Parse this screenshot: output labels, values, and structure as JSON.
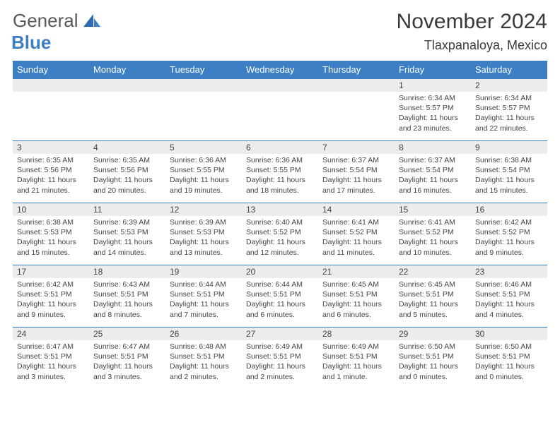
{
  "logo": {
    "word1": "General",
    "word2": "Blue"
  },
  "title": "November 2024",
  "location": "Tlaxpanaloya, Mexico",
  "colors": {
    "header_bg": "#3d7fc4",
    "header_text": "#ffffff",
    "daynum_bg": "#ececec",
    "border": "#3d7fc4",
    "logo_gray": "#5a5a5a",
    "logo_blue": "#3d7fc4"
  },
  "dayNames": [
    "Sunday",
    "Monday",
    "Tuesday",
    "Wednesday",
    "Thursday",
    "Friday",
    "Saturday"
  ],
  "weeks": [
    [
      {
        "n": "",
        "sr": "",
        "ss": "",
        "dl": ""
      },
      {
        "n": "",
        "sr": "",
        "ss": "",
        "dl": ""
      },
      {
        "n": "",
        "sr": "",
        "ss": "",
        "dl": ""
      },
      {
        "n": "",
        "sr": "",
        "ss": "",
        "dl": ""
      },
      {
        "n": "",
        "sr": "",
        "ss": "",
        "dl": ""
      },
      {
        "n": "1",
        "sr": "Sunrise: 6:34 AM",
        "ss": "Sunset: 5:57 PM",
        "dl": "Daylight: 11 hours and 23 minutes."
      },
      {
        "n": "2",
        "sr": "Sunrise: 6:34 AM",
        "ss": "Sunset: 5:57 PM",
        "dl": "Daylight: 11 hours and 22 minutes."
      }
    ],
    [
      {
        "n": "3",
        "sr": "Sunrise: 6:35 AM",
        "ss": "Sunset: 5:56 PM",
        "dl": "Daylight: 11 hours and 21 minutes."
      },
      {
        "n": "4",
        "sr": "Sunrise: 6:35 AM",
        "ss": "Sunset: 5:56 PM",
        "dl": "Daylight: 11 hours and 20 minutes."
      },
      {
        "n": "5",
        "sr": "Sunrise: 6:36 AM",
        "ss": "Sunset: 5:55 PM",
        "dl": "Daylight: 11 hours and 19 minutes."
      },
      {
        "n": "6",
        "sr": "Sunrise: 6:36 AM",
        "ss": "Sunset: 5:55 PM",
        "dl": "Daylight: 11 hours and 18 minutes."
      },
      {
        "n": "7",
        "sr": "Sunrise: 6:37 AM",
        "ss": "Sunset: 5:54 PM",
        "dl": "Daylight: 11 hours and 17 minutes."
      },
      {
        "n": "8",
        "sr": "Sunrise: 6:37 AM",
        "ss": "Sunset: 5:54 PM",
        "dl": "Daylight: 11 hours and 16 minutes."
      },
      {
        "n": "9",
        "sr": "Sunrise: 6:38 AM",
        "ss": "Sunset: 5:54 PM",
        "dl": "Daylight: 11 hours and 15 minutes."
      }
    ],
    [
      {
        "n": "10",
        "sr": "Sunrise: 6:38 AM",
        "ss": "Sunset: 5:53 PM",
        "dl": "Daylight: 11 hours and 15 minutes."
      },
      {
        "n": "11",
        "sr": "Sunrise: 6:39 AM",
        "ss": "Sunset: 5:53 PM",
        "dl": "Daylight: 11 hours and 14 minutes."
      },
      {
        "n": "12",
        "sr": "Sunrise: 6:39 AM",
        "ss": "Sunset: 5:53 PM",
        "dl": "Daylight: 11 hours and 13 minutes."
      },
      {
        "n": "13",
        "sr": "Sunrise: 6:40 AM",
        "ss": "Sunset: 5:52 PM",
        "dl": "Daylight: 11 hours and 12 minutes."
      },
      {
        "n": "14",
        "sr": "Sunrise: 6:41 AM",
        "ss": "Sunset: 5:52 PM",
        "dl": "Daylight: 11 hours and 11 minutes."
      },
      {
        "n": "15",
        "sr": "Sunrise: 6:41 AM",
        "ss": "Sunset: 5:52 PM",
        "dl": "Daylight: 11 hours and 10 minutes."
      },
      {
        "n": "16",
        "sr": "Sunrise: 6:42 AM",
        "ss": "Sunset: 5:52 PM",
        "dl": "Daylight: 11 hours and 9 minutes."
      }
    ],
    [
      {
        "n": "17",
        "sr": "Sunrise: 6:42 AM",
        "ss": "Sunset: 5:51 PM",
        "dl": "Daylight: 11 hours and 9 minutes."
      },
      {
        "n": "18",
        "sr": "Sunrise: 6:43 AM",
        "ss": "Sunset: 5:51 PM",
        "dl": "Daylight: 11 hours and 8 minutes."
      },
      {
        "n": "19",
        "sr": "Sunrise: 6:44 AM",
        "ss": "Sunset: 5:51 PM",
        "dl": "Daylight: 11 hours and 7 minutes."
      },
      {
        "n": "20",
        "sr": "Sunrise: 6:44 AM",
        "ss": "Sunset: 5:51 PM",
        "dl": "Daylight: 11 hours and 6 minutes."
      },
      {
        "n": "21",
        "sr": "Sunrise: 6:45 AM",
        "ss": "Sunset: 5:51 PM",
        "dl": "Daylight: 11 hours and 6 minutes."
      },
      {
        "n": "22",
        "sr": "Sunrise: 6:45 AM",
        "ss": "Sunset: 5:51 PM",
        "dl": "Daylight: 11 hours and 5 minutes."
      },
      {
        "n": "23",
        "sr": "Sunrise: 6:46 AM",
        "ss": "Sunset: 5:51 PM",
        "dl": "Daylight: 11 hours and 4 minutes."
      }
    ],
    [
      {
        "n": "24",
        "sr": "Sunrise: 6:47 AM",
        "ss": "Sunset: 5:51 PM",
        "dl": "Daylight: 11 hours and 3 minutes."
      },
      {
        "n": "25",
        "sr": "Sunrise: 6:47 AM",
        "ss": "Sunset: 5:51 PM",
        "dl": "Daylight: 11 hours and 3 minutes."
      },
      {
        "n": "26",
        "sr": "Sunrise: 6:48 AM",
        "ss": "Sunset: 5:51 PM",
        "dl": "Daylight: 11 hours and 2 minutes."
      },
      {
        "n": "27",
        "sr": "Sunrise: 6:49 AM",
        "ss": "Sunset: 5:51 PM",
        "dl": "Daylight: 11 hours and 2 minutes."
      },
      {
        "n": "28",
        "sr": "Sunrise: 6:49 AM",
        "ss": "Sunset: 5:51 PM",
        "dl": "Daylight: 11 hours and 1 minute."
      },
      {
        "n": "29",
        "sr": "Sunrise: 6:50 AM",
        "ss": "Sunset: 5:51 PM",
        "dl": "Daylight: 11 hours and 0 minutes."
      },
      {
        "n": "30",
        "sr": "Sunrise: 6:50 AM",
        "ss": "Sunset: 5:51 PM",
        "dl": "Daylight: 11 hours and 0 minutes."
      }
    ]
  ]
}
